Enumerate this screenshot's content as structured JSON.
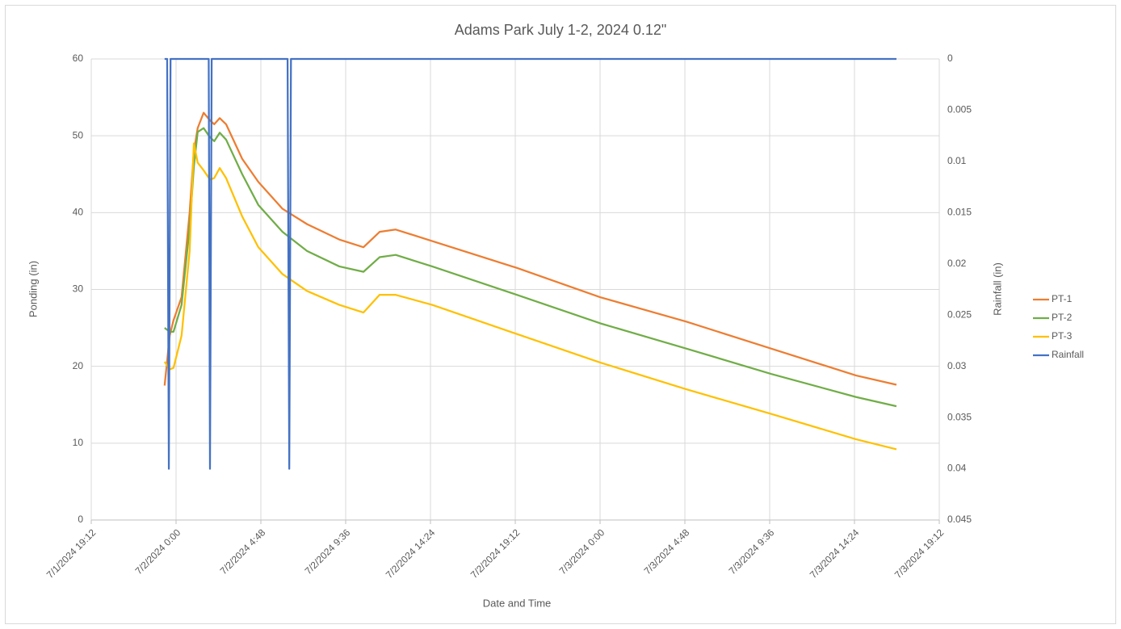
{
  "chart_data": {
    "type": "line",
    "title": "Adams Park July 1-2, 2024 0.12\"",
    "x_label": "Date and Time",
    "y_label": "Ponding (in)",
    "y2_label": "Rainfall (in)",
    "x": [
      45474.973,
      45474.985,
      45474.994,
      45475.013,
      45475.032,
      45475.042,
      45475.051,
      45475.065,
      45475.08,
      45475.09,
      45475.103,
      45475.118,
      45475.156,
      45475.194,
      45475.251,
      45475.309,
      45475.385,
      45475.442,
      45475.48,
      45475.518,
      45475.604,
      45475.804,
      45476.0,
      45476.204,
      45476.404,
      45476.604,
      45476.699
    ],
    "series": [
      {
        "name": "PT-1",
        "color": "#ed7d31",
        "values": [
          17.5,
          24,
          26,
          29,
          40,
          48,
          51,
          53,
          52,
          51.5,
          52.3,
          51.5,
          47,
          44,
          40.5,
          38.5,
          36.5,
          35.5,
          37.5,
          37.8,
          36.3,
          32.8,
          29,
          25.8,
          22.3,
          18.8,
          17.6
        ]
      },
      {
        "name": "PT-2",
        "color": "#70ad47",
        "values": [
          25,
          24.5,
          24.5,
          28,
          38,
          46,
          50.5,
          51,
          49.8,
          49.3,
          50.4,
          49.5,
          45,
          41,
          37.5,
          35,
          33,
          32.3,
          34.2,
          34.5,
          33,
          29.3,
          25.6,
          22.3,
          19,
          16,
          14.8
        ]
      },
      {
        "name": "PT-3",
        "color": "#ffc000",
        "values": [
          20.6,
          19.6,
          19.8,
          24,
          35,
          49,
          46.5,
          45.5,
          44.3,
          44.5,
          45.8,
          44.5,
          39.5,
          35.5,
          32,
          29.8,
          28,
          27,
          29.3,
          29.3,
          28,
          24.2,
          20.5,
          17,
          13.8,
          10.5,
          9.2
        ]
      },
      {
        "name": "Rainfall",
        "color": "#4472c4",
        "axis": "y2",
        "x": [
          45474.973,
          45474.979,
          45474.983,
          45474.987,
          45475.077,
          45475.08,
          45475.084,
          45475.263,
          45475.267,
          45475.271,
          45476.699
        ],
        "values": [
          0,
          0,
          0.04,
          0,
          0,
          0.04,
          0,
          0,
          0.04,
          0,
          0
        ]
      }
    ],
    "xlim": [
      45474.8,
      45476.8
    ],
    "xticks": [
      {
        "value": 45474.8,
        "label": "7/1/2024 19:12"
      },
      {
        "value": 45475.0,
        "label": "7/2/2024 0:00"
      },
      {
        "value": 45475.2,
        "label": "7/2/2024 4:48"
      },
      {
        "value": 45475.4,
        "label": "7/2/2024 9:36"
      },
      {
        "value": 45475.6,
        "label": "7/2/2024 14:24"
      },
      {
        "value": 45475.8,
        "label": "7/2/2024 19:12"
      },
      {
        "value": 45476.0,
        "label": "7/3/2024 0:00"
      },
      {
        "value": 45476.2,
        "label": "7/3/2024 4:48"
      },
      {
        "value": 45476.4,
        "label": "7/3/2024 9:36"
      },
      {
        "value": 45476.6,
        "label": "7/3/2024 14:24"
      },
      {
        "value": 45476.8,
        "label": "7/3/2024 19:12"
      }
    ],
    "ylim": [
      0,
      60
    ],
    "yticks": [
      0,
      10,
      20,
      30,
      40,
      50,
      60
    ],
    "y2lim": [
      0,
      0.045
    ],
    "y2ticks": [
      0,
      0.005,
      0.01,
      0.015,
      0.02,
      0.025,
      0.03,
      0.035,
      0.04,
      0.045
    ],
    "y2_reversed": true,
    "grid": true,
    "legend": "right"
  }
}
